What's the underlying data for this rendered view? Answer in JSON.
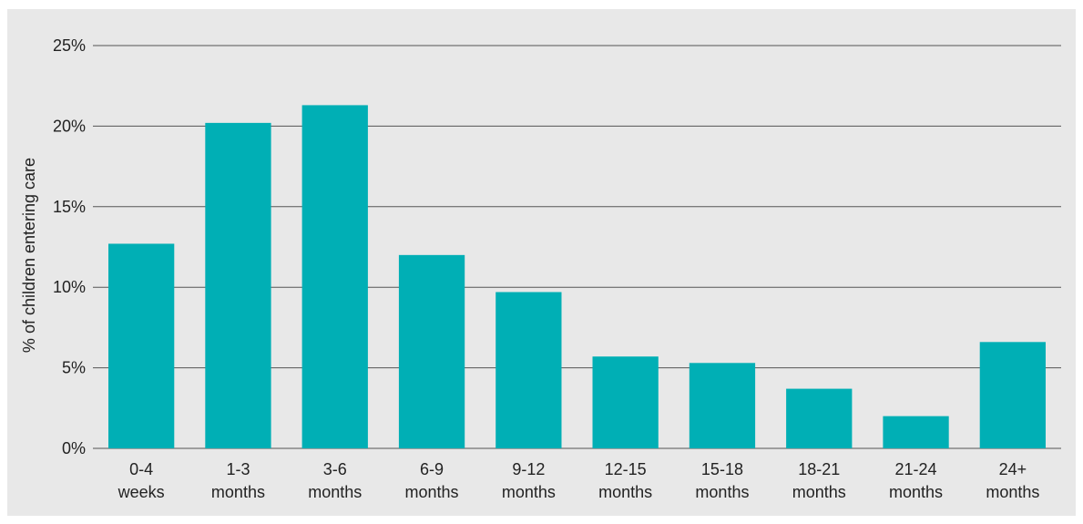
{
  "chart_data": {
    "type": "bar",
    "title": "",
    "xlabel": "",
    "ylabel": "% of children entering care",
    "categories": [
      [
        "0-4",
        "weeks"
      ],
      [
        "1-3",
        "months"
      ],
      [
        "3-6",
        "months"
      ],
      [
        "6-9",
        "months"
      ],
      [
        "9-12",
        "months"
      ],
      [
        "12-15",
        "months"
      ],
      [
        "15-18",
        "months"
      ],
      [
        "18-21",
        "months"
      ],
      [
        "21-24",
        "months"
      ],
      [
        "24+",
        "months"
      ]
    ],
    "values": [
      12.7,
      20.2,
      21.3,
      12.0,
      9.7,
      5.7,
      5.3,
      3.7,
      2.0,
      6.6
    ],
    "ylim": [
      0,
      25
    ],
    "yticks": [
      0,
      5,
      10,
      15,
      20,
      25
    ],
    "ytick_labels": [
      "0%",
      "5%",
      "10%",
      "15%",
      "20%",
      "25%"
    ],
    "grid": "horizontal",
    "legend": "none",
    "bar_color": "#00afb5",
    "grid_color": "#555555",
    "background_color": "#e8e8e8"
  }
}
